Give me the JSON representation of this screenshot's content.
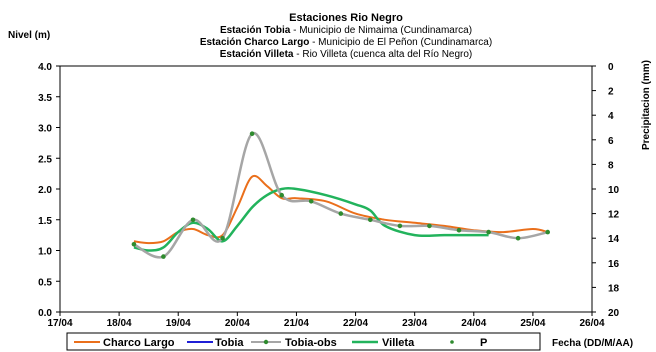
{
  "chart_data": {
    "type": "line",
    "title": "Estaciones Rio Negro",
    "subtitle_lines": [
      {
        "station": "Estación Tobia",
        "detail": " - Municipio de Nimaima (Cundinamarca)"
      },
      {
        "station": "Estación Charco Largo",
        "detail": " - Municipio de El Peñon (Cundinamarca)"
      },
      {
        "station": "Estación Villeta",
        "detail": " -  Rio Villeta (cuenca alta del Río Negro)"
      }
    ],
    "ylabel": "Nivel (m)",
    "y2label": "Precipitacion (mm)",
    "xlabel": "Fecha (DD/M/AA)",
    "x_ticks": [
      "17/04",
      "18/04",
      "19/04",
      "20/04",
      "21/04",
      "22/04",
      "23/04",
      "24/04",
      "25/04",
      "26/04"
    ],
    "y_ticks": [
      "0.0",
      "0.5",
      "1.0",
      "1.5",
      "2.0",
      "2.5",
      "3.0",
      "3.5",
      "4.0"
    ],
    "y2_ticks": [
      "0",
      "2",
      "4",
      "6",
      "8",
      "10",
      "12",
      "14",
      "16",
      "18",
      "20"
    ],
    "xlim": [
      17,
      26
    ],
    "ylim": [
      0,
      4
    ],
    "y2lim": [
      20,
      0
    ],
    "grid": false,
    "legend_position": "bottom",
    "series": [
      {
        "name": "Charco Largo",
        "color": "#ea6f1b",
        "style": "line",
        "x": [
          18.25,
          18.5,
          18.75,
          19.0,
          19.25,
          19.5,
          19.75,
          20.0,
          20.25,
          20.5,
          20.75,
          21.0,
          21.5,
          22.0,
          22.5,
          23.0,
          23.5,
          24.0,
          24.5,
          25.0,
          25.25
        ],
        "y": [
          1.15,
          1.12,
          1.15,
          1.3,
          1.35,
          1.25,
          1.25,
          1.7,
          2.2,
          2.05,
          1.85,
          1.85,
          1.8,
          1.6,
          1.5,
          1.45,
          1.4,
          1.33,
          1.3,
          1.35,
          1.3
        ]
      },
      {
        "name": "Tobia",
        "color": "#1f1fd6",
        "style": "line",
        "x": [],
        "y": []
      },
      {
        "name": "Tobia-obs",
        "color": "#a6a6a6",
        "style": "line-markers",
        "marker_color": "#2e8b2e",
        "x": [
          18.25,
          18.75,
          19.25,
          19.75,
          20.25,
          20.75,
          21.25,
          21.75,
          22.25,
          22.75,
          23.25,
          23.75,
          24.25,
          24.75,
          25.25
        ],
        "y": [
          1.1,
          0.9,
          1.5,
          1.2,
          2.9,
          1.9,
          1.8,
          1.6,
          1.5,
          1.4,
          1.4,
          1.33,
          1.3,
          1.2,
          1.3
        ]
      },
      {
        "name": "Villeta",
        "color": "#22b35c",
        "style": "line",
        "x": [
          18.25,
          18.5,
          18.75,
          19.0,
          19.25,
          19.5,
          19.75,
          20.0,
          20.25,
          20.5,
          20.75,
          21.0,
          21.5,
          22.0,
          22.25,
          22.5,
          23.0,
          23.5,
          24.0,
          24.25
        ],
        "y": [
          1.05,
          1.0,
          1.05,
          1.3,
          1.45,
          1.35,
          1.15,
          1.4,
          1.7,
          1.9,
          2.0,
          2.0,
          1.9,
          1.75,
          1.65,
          1.4,
          1.25,
          1.25,
          1.25,
          1.25
        ]
      },
      {
        "name": "P",
        "color": "#2e8b2e",
        "style": "markers",
        "x": [],
        "y": []
      }
    ]
  }
}
